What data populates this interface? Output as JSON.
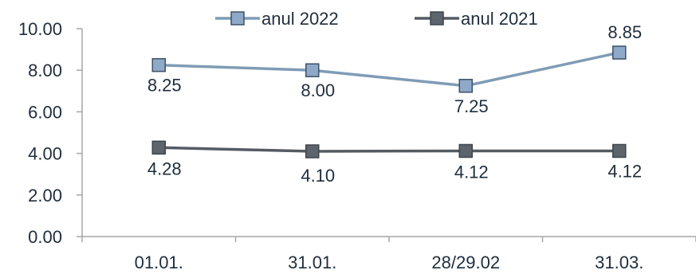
{
  "chart_data": {
    "type": "line",
    "categories": [
      "01.01.",
      "31.01.",
      "28/29.02",
      "31.03."
    ],
    "series": [
      {
        "name": "anul 2022",
        "values": [
          8.25,
          8.0,
          7.25,
          8.85
        ],
        "labels": [
          "8.25",
          "8.00",
          "7.25",
          "8.85"
        ],
        "color": "#7f9cb6",
        "marker_fill": "#8fa9c8",
        "marker_stroke": "#3d5166"
      },
      {
        "name": "anul 2021",
        "values": [
          4.28,
          4.1,
          4.12,
          4.12
        ],
        "labels": [
          "4.28",
          "4.10",
          "4.12",
          "4.12"
        ],
        "color": "#555b63",
        "marker_fill": "#5d646c",
        "marker_stroke": "#3f454c"
      }
    ],
    "yticks": [
      "0.00",
      "2.00",
      "4.00",
      "6.00",
      "8.00",
      "10.00"
    ],
    "ylim": [
      0,
      10
    ],
    "grid": false,
    "legend_position": "top"
  }
}
